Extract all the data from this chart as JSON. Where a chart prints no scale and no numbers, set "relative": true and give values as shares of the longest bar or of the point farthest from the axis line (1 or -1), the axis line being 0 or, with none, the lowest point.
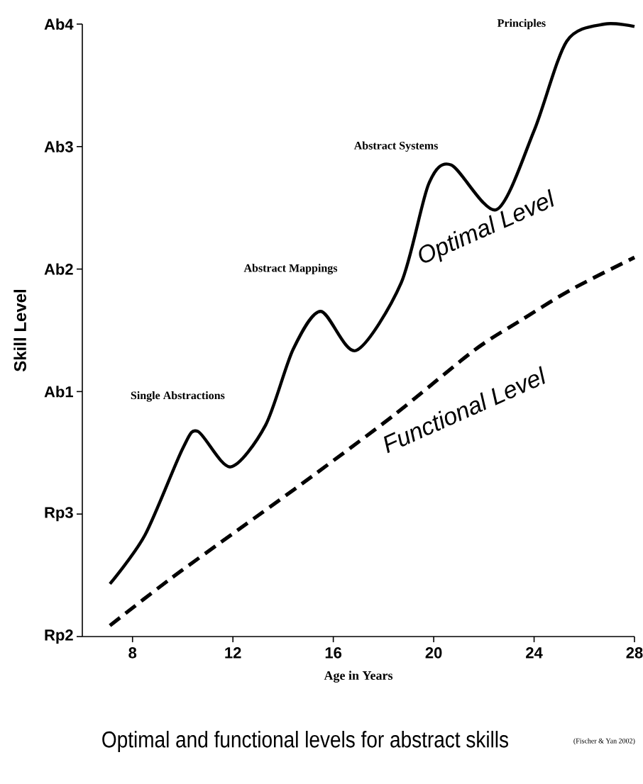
{
  "chart_data": {
    "type": "line",
    "title": "Optimal and functional levels for abstract skills",
    "xlabel": "Age in Years",
    "ylabel": "Skill Level",
    "xlim": [
      6,
      28
    ],
    "xticks": [
      8,
      12,
      16,
      20,
      24,
      28
    ],
    "relative": true,
    "grid": false,
    "legend": false,
    "marker": "none",
    "series": [
      {
        "name": "Optimal Level",
        "color": "#000000",
        "line_style": "solid",
        "x": [
          7.1,
          8.5,
          10.0,
          10.6,
          11.9,
          13.3,
          14.4,
          15.5,
          16.9,
          18.7,
          19.8,
          20.7,
          22.5,
          24.0,
          25.3,
          26.8,
          28.0
        ],
        "values": [
          0.086,
          0.166,
          0.307,
          0.335,
          0.277,
          0.345,
          0.469,
          0.531,
          0.467,
          0.577,
          0.739,
          0.77,
          0.697,
          0.826,
          0.972,
          1.0,
          0.996
        ]
      },
      {
        "name": "Functional Level",
        "color": "#000000",
        "line_style": "dashed",
        "x": [
          7.1,
          9.5,
          12.2,
          14.8,
          18.4,
          21.6,
          23.5,
          25.5,
          28.0
        ],
        "values": [
          0.018,
          0.094,
          0.174,
          0.251,
          0.361,
          0.467,
          0.517,
          0.567,
          0.619
        ]
      }
    ],
    "annotations": [
      "Rp2",
      "Rp3",
      "Ab1",
      "Ab2",
      "Ab3",
      "Ab4",
      "Single Abstractions",
      "Abstract Mappings",
      "Abstract Systems",
      "Principles",
      "(Fischer & Yan 2002)"
    ]
  }
}
